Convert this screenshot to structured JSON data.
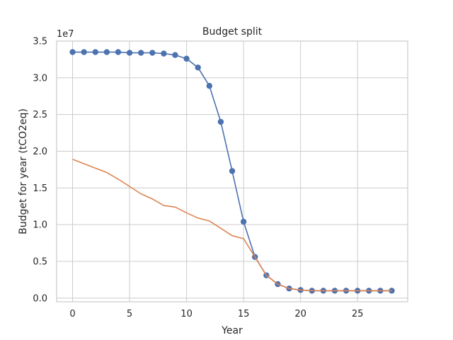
{
  "chart_data": {
    "type": "line",
    "title": "Budget split",
    "xlabel": "Year",
    "ylabel": "Budget for year (tCO2eq)",
    "y_offset_label": "1e7",
    "y_scale": 10000000,
    "xlim": [
      -1.4,
      29.4
    ],
    "ylim": [
      -0.05,
      3.5
    ],
    "x_ticks": [
      0,
      5,
      10,
      15,
      20,
      25
    ],
    "y_ticks": [
      0.0,
      0.5,
      1.0,
      1.5,
      2.0,
      2.5,
      3.0,
      3.5
    ],
    "y_tick_labels": [
      "0.0",
      "0.5",
      "1.0",
      "1.5",
      "2.0",
      "2.5",
      "3.0",
      "3.5"
    ],
    "grid": true,
    "legend": "none",
    "series": [
      {
        "color": "#4c72b0",
        "marker": "circle",
        "x": [
          0,
          1,
          2,
          3,
          4,
          5,
          6,
          7,
          8,
          9,
          10,
          11,
          12,
          13,
          14,
          15,
          16,
          17,
          18,
          19,
          20,
          21,
          22,
          23,
          24,
          25,
          26,
          27,
          28
        ],
        "values": [
          3.35,
          3.35,
          3.35,
          3.35,
          3.35,
          3.34,
          3.34,
          3.34,
          3.33,
          3.31,
          3.26,
          3.14,
          2.89,
          2.4,
          1.73,
          1.04,
          0.56,
          0.31,
          0.19,
          0.13,
          0.11,
          0.1,
          0.1,
          0.1,
          0.1,
          0.1,
          0.1,
          0.1,
          0.1
        ]
      },
      {
        "color": "#dd8452",
        "marker": "none",
        "x": [
          0,
          1,
          2,
          3,
          4,
          5,
          6,
          7,
          8,
          9,
          10,
          11,
          12,
          13,
          14,
          15,
          16,
          17,
          18,
          19,
          20,
          21,
          22,
          23,
          24,
          25,
          26,
          27,
          28
        ],
        "values": [
          1.89,
          1.83,
          1.77,
          1.71,
          1.62,
          1.52,
          1.42,
          1.35,
          1.26,
          1.24,
          1.16,
          1.09,
          1.05,
          0.95,
          0.85,
          0.81,
          0.56,
          0.31,
          0.19,
          0.13,
          0.11,
          0.1,
          0.1,
          0.1,
          0.1,
          0.1,
          0.1,
          0.1,
          0.1
        ]
      }
    ]
  }
}
